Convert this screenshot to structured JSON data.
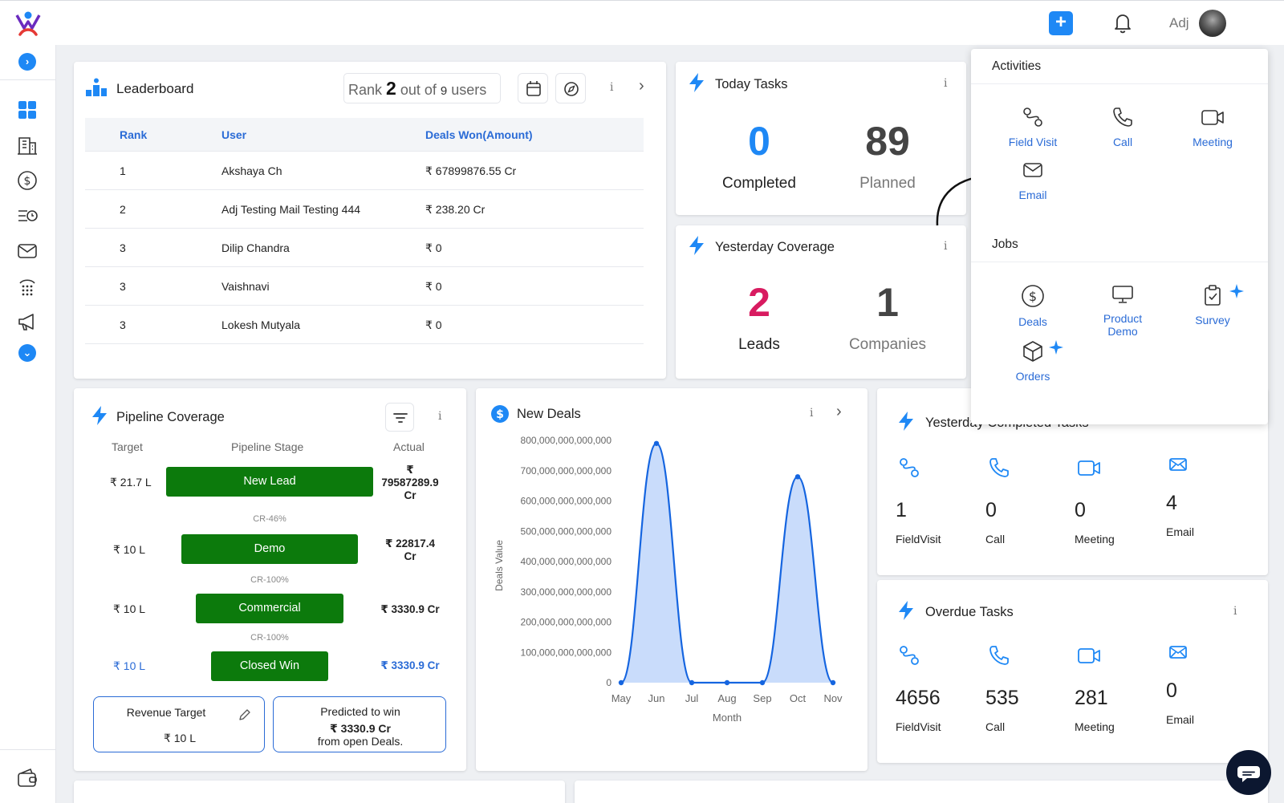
{
  "header": {
    "user_name": "Adj",
    "add_label": "+"
  },
  "sidebar": {
    "expand": "›",
    "collapse": "⌄"
  },
  "leaderboard": {
    "title": "Leaderboard",
    "rank_prefix": "Rank",
    "rank_value": "2",
    "rank_mid": "out of",
    "rank_total": "9",
    "rank_suffix": "users",
    "info": "i",
    "next": "›",
    "columns": [
      "Rank",
      "User",
      "Deals Won(Amount)"
    ],
    "rows": [
      [
        "1",
        "Akshaya Ch",
        "₹ 67899876.55 Cr"
      ],
      [
        "2",
        "Adj Testing Mail Testing 444",
        "₹ 238.20 Cr"
      ],
      [
        "3",
        "Dilip Chandra",
        "₹ 0"
      ],
      [
        "3",
        "Vaishnavi",
        "₹ 0"
      ],
      [
        "3",
        "Lokesh Mutyala",
        "₹ 0"
      ]
    ]
  },
  "today_tasks": {
    "title": "Today Tasks",
    "info": "i",
    "completed_value": "0",
    "completed_label": "Completed",
    "planned_value": "89",
    "planned_label": "Planned"
  },
  "yesterday_coverage": {
    "title": "Yesterday Coverage",
    "info": "i",
    "leads_value": "2",
    "leads_label": "Leads",
    "companies_value": "1",
    "companies_label": "Companies"
  },
  "pipeline": {
    "title": "Pipeline Coverage",
    "info": "i",
    "col_target": "Target",
    "col_stage": "Pipeline Stage",
    "col_actual": "Actual",
    "stages": [
      {
        "target": "₹ 21.7 L",
        "label": "New Lead",
        "actual": "₹ 79587289.9 Cr"
      },
      {
        "target": "₹ 10 L",
        "label": "Demo",
        "actual": "₹ 22817.4 Cr"
      },
      {
        "target": "₹ 10 L",
        "label": "Commercial",
        "actual": "₹ 3330.9 Cr"
      },
      {
        "target": "₹ 10 L",
        "label": "Closed Win",
        "actual": "₹ 3330.9 Cr"
      }
    ],
    "actual_1_line1": "₹",
    "actual_1_line2": "79587289.9",
    "actual_1_line3": "Cr",
    "actual_2_line1": "₹ 22817.4",
    "actual_2_line2": "Cr",
    "cr_rates": [
      "CR-46%",
      "CR-100%",
      "CR-100%"
    ],
    "revenue_target_label": "Revenue Target",
    "revenue_target_value": "₹ 10 L",
    "predicted_label": "Predicted to win",
    "predicted_value": "₹ 3330.9 Cr",
    "predicted_note": "from open Deals."
  },
  "new_deals": {
    "title": "New Deals",
    "info": "i",
    "next": "›"
  },
  "chart_data": {
    "type": "area",
    "title": "",
    "xlabel": "Month",
    "ylabel": "Deals Value",
    "x": [
      "May",
      "Jun",
      "Jul",
      "Aug",
      "Sep",
      "Oct",
      "Nov"
    ],
    "y": [
      0,
      790000000000000,
      0,
      0,
      0,
      680000000000000,
      0
    ],
    "ylim": [
      0,
      800000000000000
    ],
    "yticks": [
      "0",
      "100,000,000,000,000",
      "200,000,000,000,000",
      "300,000,000,000,000",
      "400,000,000,000,000",
      "500,000,000,000,000",
      "600,000,000,000,000",
      "700,000,000,000,000",
      "800,000,000,000,000"
    ],
    "color": "#1565e0",
    "fill": "#c9dcfb",
    "grid": false
  },
  "yesterday_completed": {
    "title": "Yesterday Completed Tasks",
    "info": "i",
    "stats": [
      {
        "value": "1",
        "label": "FieldVisit"
      },
      {
        "value": "0",
        "label": "Call"
      },
      {
        "value": "0",
        "label": "Meeting"
      },
      {
        "value": "4",
        "label": "Email"
      }
    ]
  },
  "overdue": {
    "title": "Overdue Tasks",
    "info": "i",
    "stats": [
      {
        "value": "4656",
        "label": "FieldVisit"
      },
      {
        "value": "535",
        "label": "Call"
      },
      {
        "value": "281",
        "label": "Meeting"
      },
      {
        "value": "0",
        "label": "Email"
      }
    ]
  },
  "activities_popup": {
    "activities_heading": "Activities",
    "jobs_heading": "Jobs",
    "activities": [
      "Field Visit",
      "Call",
      "Meeting",
      "Email"
    ],
    "jobs_deals": "Deals",
    "jobs_product_line1": "Product",
    "jobs_product_line2": "Demo",
    "jobs_survey": "Survey",
    "jobs_orders": "Orders"
  },
  "colors": {
    "primary": "#1e88f5",
    "stage_green": "#0c7a0c",
    "leads_pink": "#d81b60",
    "link_blue": "#2a6bd6"
  }
}
